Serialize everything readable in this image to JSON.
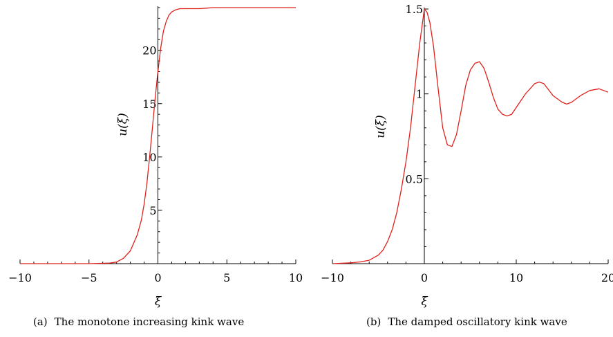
{
  "chart_data": [
    {
      "type": "line",
      "caption_tag": "(a)",
      "caption_text": "The monotone increasing kink wave",
      "xlabel": "ξ",
      "ylabel": "u(ξ)",
      "xlim": [
        -10,
        10
      ],
      "ylim": [
        0,
        24
      ],
      "xticks": [
        -10,
        -5,
        0,
        5,
        10
      ],
      "xtick_labels": [
        "−10",
        "−5",
        "0",
        "5",
        "10"
      ],
      "yticks": [
        5,
        10,
        15,
        20
      ],
      "ytick_labels": [
        "5",
        "10",
        "15",
        "20"
      ],
      "grid": false,
      "line_color": "#e0201b",
      "series": [
        {
          "x": [
            -10,
            -5,
            -3.5,
            -3,
            -2.5,
            -2,
            -1.5,
            -1.2,
            -1,
            -0.8,
            -0.6,
            -0.4,
            -0.2,
            0,
            0.2,
            0.4,
            0.6,
            0.8,
            1,
            1.3,
            1.6,
            2,
            2.5,
            3,
            3.5,
            4,
            5,
            7,
            10
          ],
          "y": [
            0,
            0,
            0.05,
            0.15,
            0.5,
            1.2,
            2.7,
            4.1,
            5.6,
            7.5,
            10,
            12.7,
            15.5,
            18,
            20.2,
            21.8,
            22.7,
            23.3,
            23.6,
            23.8,
            23.9,
            23.9,
            23.9,
            23.9,
            23.95,
            24,
            24,
            24,
            24
          ]
        }
      ]
    },
    {
      "type": "line",
      "caption_tag": "(b)",
      "caption_text": "The damped oscillatory kink wave",
      "xlabel": "ξ",
      "ylabel": "u(ξ)",
      "xlim": [
        -10,
        20
      ],
      "ylim": [
        0,
        1.5
      ],
      "xticks": [
        -10,
        0,
        10,
        20
      ],
      "xtick_labels": [
        "−10",
        "0",
        "10",
        "20"
      ],
      "yticks": [
        0.5,
        1,
        1.5
      ],
      "ytick_labels": [
        "0.5",
        "1",
        "1.5"
      ],
      "grid": false,
      "line_color": "#e0201b",
      "series": [
        {
          "x": [
            -10,
            -8,
            -7,
            -6,
            -5,
            -4.5,
            -4,
            -3.5,
            -3,
            -2.5,
            -2,
            -1.5,
            -1,
            -0.5,
            0,
            0.3,
            0.6,
            1,
            1.5,
            2,
            2.5,
            3,
            3.5,
            4,
            4.5,
            5,
            5.5,
            6,
            6.5,
            7,
            7.5,
            8,
            8.5,
            9,
            9.5,
            10,
            11,
            12,
            12.5,
            13,
            14,
            15,
            15.5,
            16,
            17,
            18,
            19,
            20
          ],
          "y": [
            0,
            0.005,
            0.01,
            0.02,
            0.05,
            0.08,
            0.13,
            0.2,
            0.3,
            0.44,
            0.6,
            0.8,
            1.05,
            1.3,
            1.5,
            1.48,
            1.42,
            1.28,
            1.03,
            0.8,
            0.7,
            0.69,
            0.76,
            0.9,
            1.05,
            1.14,
            1.18,
            1.19,
            1.15,
            1.07,
            0.98,
            0.91,
            0.88,
            0.87,
            0.88,
            0.92,
            1.0,
            1.06,
            1.07,
            1.06,
            0.99,
            0.95,
            0.94,
            0.95,
            0.99,
            1.02,
            1.03,
            1.01
          ]
        }
      ]
    }
  ]
}
